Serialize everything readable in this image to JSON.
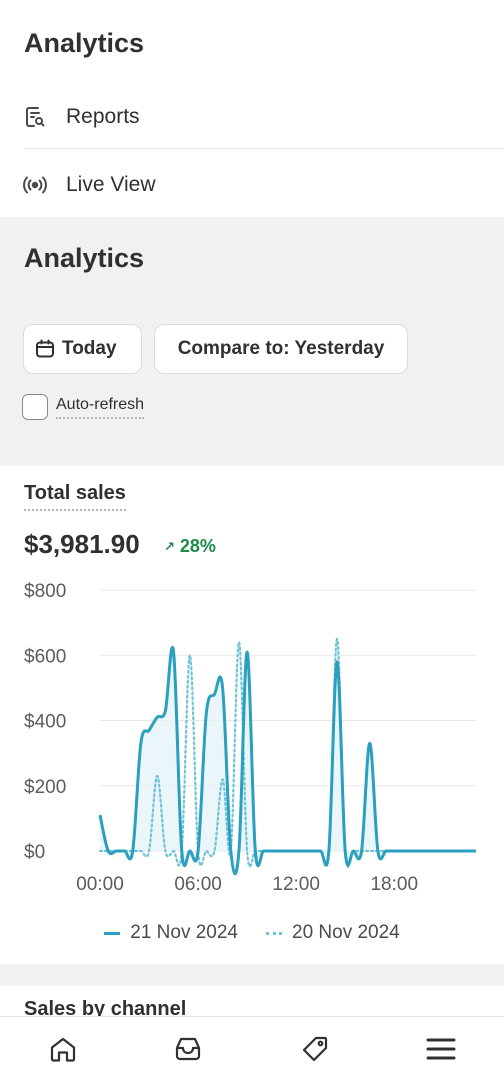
{
  "nav": {
    "title": "Analytics",
    "items": [
      {
        "label": "Reports",
        "icon": "report-search-icon"
      },
      {
        "label": "Live View",
        "icon": "live-broadcast-icon"
      }
    ]
  },
  "filters": {
    "title": "Analytics",
    "date_button": "Today",
    "compare_button": "Compare to: Yesterday",
    "auto_refresh_label": "Auto-refresh",
    "auto_refresh_checked": false
  },
  "sales": {
    "title": "Total sales",
    "total": "$3,981.90",
    "change": "28%",
    "change_color": "#1a8a46"
  },
  "chart_data": {
    "type": "line",
    "ylim": [
      0,
      800
    ],
    "y_ticks": [
      "$0",
      "$200",
      "$400",
      "$600",
      "$800"
    ],
    "x_ticks": [
      "00:00",
      "06:00",
      "12:00",
      "18:00"
    ],
    "x": [
      0,
      0.5,
      1,
      1.5,
      2,
      2.5,
      3,
      3.5,
      4,
      4.5,
      5,
      5.5,
      6,
      6.5,
      7,
      7.5,
      8,
      8.5,
      9,
      9.5,
      10,
      10.5,
      11,
      11.5,
      12,
      12.5,
      13,
      13.5,
      14,
      14.5,
      15,
      15.5,
      16,
      16.5,
      17,
      17.5,
      18,
      18.5,
      19,
      19.5,
      20,
      20.5,
      21,
      21.5,
      22,
      22.5,
      23
    ],
    "series": [
      {
        "name": "21 Nov 2024",
        "color": "#2a9fbe",
        "style": "solid",
        "values": [
          110,
          0,
          0,
          0,
          0,
          330,
          370,
          410,
          430,
          610,
          0,
          0,
          0,
          420,
          480,
          500,
          0,
          0,
          610,
          0,
          0,
          0,
          0,
          0,
          0,
          0,
          0,
          0,
          0,
          580,
          0,
          0,
          0,
          330,
          0,
          0,
          0,
          0,
          0,
          0,
          0,
          0,
          0,
          0,
          0,
          0,
          0
        ]
      },
      {
        "name": "20 Nov 2024",
        "color": "#6dc3d8",
        "style": "dotted",
        "values": [
          0,
          0,
          0,
          0,
          0,
          0,
          0,
          230,
          0,
          0,
          0,
          600,
          0,
          0,
          0,
          220,
          0,
          640,
          0,
          0,
          0,
          0,
          0,
          0,
          0,
          0,
          0,
          0,
          0,
          650,
          0,
          0,
          0,
          0,
          0,
          0,
          0,
          0,
          0,
          0,
          0,
          0,
          0,
          0,
          0,
          0,
          0
        ]
      }
    ]
  },
  "next_section": {
    "title": "Sales by channel"
  },
  "bottom_nav": [
    {
      "icon": "home-icon"
    },
    {
      "icon": "orders-inbox-icon"
    },
    {
      "icon": "tag-icon"
    },
    {
      "icon": "menu-icon"
    }
  ]
}
